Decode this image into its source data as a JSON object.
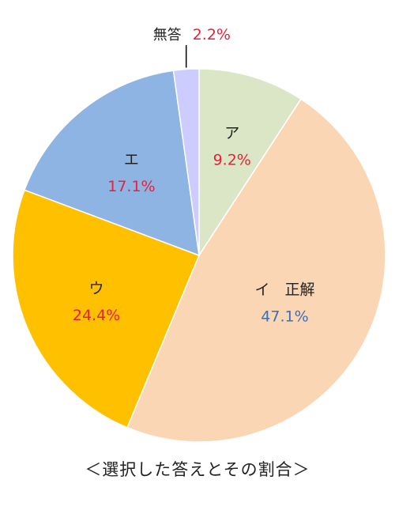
{
  "chart_data": {
    "type": "pie",
    "slices": [
      {
        "label": "ア",
        "value": 9.2,
        "pct_label": "9.2%",
        "color": "#dae6c5",
        "pct_color": "#e8203a"
      },
      {
        "label": "イ　正解",
        "value": 47.1,
        "pct_label": "47.1%",
        "color": "#fbd6b5",
        "pct_color": "#3b6fb6"
      },
      {
        "label": "ウ",
        "value": 24.4,
        "pct_label": "24.4%",
        "color": "#ffc000",
        "pct_color": "#e8203a"
      },
      {
        "label": "エ",
        "value": 17.1,
        "pct_label": "17.1%",
        "color": "#8eb4e3",
        "pct_color": "#e8203a"
      },
      {
        "label": "無答",
        "value": 2.2,
        "pct_label": "2.2%",
        "color": "#ccccff",
        "pct_color": "#e8203a"
      }
    ],
    "start_angle": "12 o'clock",
    "direction": "clockwise",
    "caption": "＜選択した答えとその割合＞"
  }
}
